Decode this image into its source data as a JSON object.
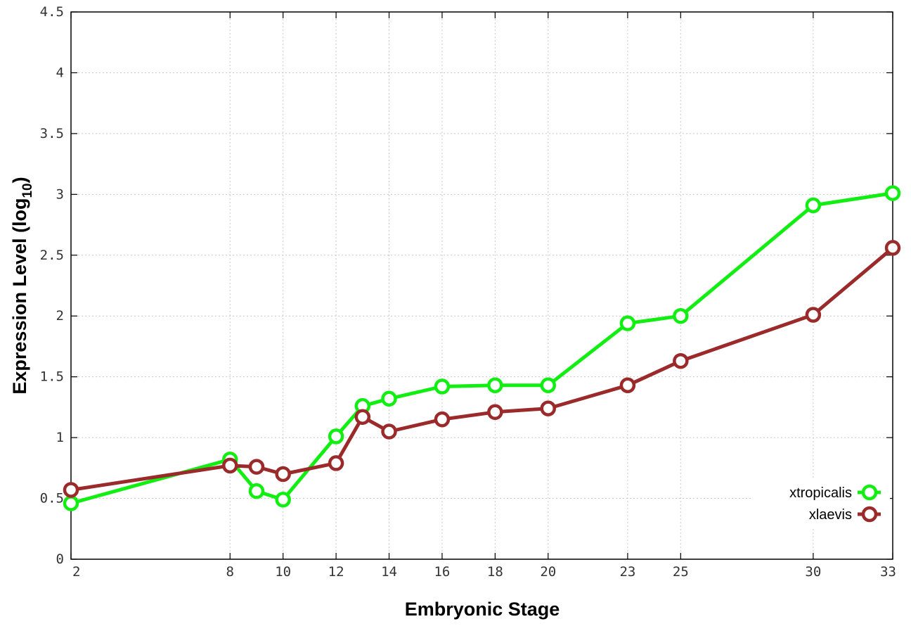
{
  "chart_data": {
    "type": "line",
    "xlabel": "Embryonic Stage",
    "ylabel_main": "Expression Level (log",
    "ylabel_sub": "10",
    "ylabel_end": ")",
    "xlim": [
      2,
      33
    ],
    "ylim": [
      0,
      4.5
    ],
    "x_ticks": [
      2,
      8,
      10,
      12,
      14,
      16,
      18,
      20,
      23,
      25,
      30,
      33
    ],
    "x_tick_labels": [
      "2",
      "8",
      "10",
      "12",
      "14",
      "16",
      "18",
      "20",
      "23",
      "25",
      "30",
      "33"
    ],
    "y_ticks": [
      0,
      0.5,
      1,
      1.5,
      2,
      2.5,
      3,
      3.5,
      4,
      4.5
    ],
    "y_tick_labels": [
      "0",
      "0.5",
      "1",
      "1.5",
      "2",
      "2.5",
      "3",
      "3.5",
      "4",
      "4.5"
    ],
    "grid": true,
    "legend_position": "bottom-right",
    "series": [
      {
        "name": "xtropicalis",
        "color": "#11ee11",
        "marker": "open-circle",
        "x": [
          2,
          8,
          9,
          10,
          12,
          13,
          14,
          16,
          18,
          20,
          23,
          25,
          30,
          33
        ],
        "y": [
          0.46,
          0.82,
          0.56,
          0.49,
          1.01,
          1.26,
          1.32,
          1.42,
          1.43,
          1.43,
          1.94,
          2.0,
          2.91,
          3.01
        ]
      },
      {
        "name": "xlaevis",
        "color": "#9b2a2a",
        "marker": "open-circle",
        "x": [
          2,
          8,
          9,
          10,
          12,
          13,
          14,
          16,
          18,
          20,
          23,
          25,
          30,
          33
        ],
        "y": [
          0.57,
          0.77,
          0.76,
          0.7,
          0.79,
          1.17,
          1.05,
          1.15,
          1.21,
          1.24,
          1.43,
          1.63,
          2.01,
          2.56
        ]
      }
    ]
  }
}
